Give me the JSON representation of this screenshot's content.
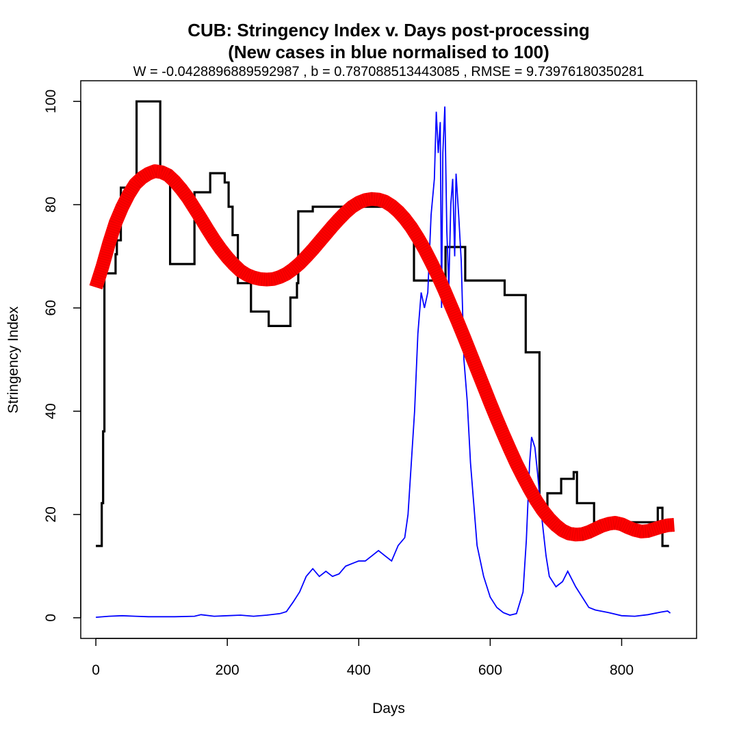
{
  "chart_data": {
    "type": "line",
    "title": "CUB: Stringency Index v. Days post-processing",
    "title_line2": "(New cases in blue normalised to 100)",
    "subtitle": "W = -0.0428896889592987 , b = 0.787088513443085 , RMSE = 9.73976180350281",
    "xlabel": "Days",
    "ylabel": "Stringency Index",
    "xlim": [
      -23,
      914
    ],
    "ylim": [
      -4,
      104
    ],
    "x_ticks": [
      0,
      200,
      400,
      600,
      800
    ],
    "y_ticks": [
      0,
      20,
      40,
      60,
      80,
      100
    ],
    "grid": false,
    "series": [
      {
        "color": "#000000",
        "style": "step",
        "points": [
          [
            0,
            13.9
          ],
          [
            9,
            13.9
          ],
          [
            9,
            22.2
          ],
          [
            11,
            22.2
          ],
          [
            11,
            36.1
          ],
          [
            13,
            36.1
          ],
          [
            13,
            66.7
          ],
          [
            30,
            66.7
          ],
          [
            30,
            70.4
          ],
          [
            32,
            70.4
          ],
          [
            32,
            73.1
          ],
          [
            38,
            73.1
          ],
          [
            38,
            83.3
          ],
          [
            58,
            83.3
          ],
          [
            58,
            85.2
          ],
          [
            62,
            85.2
          ],
          [
            62,
            100
          ],
          [
            98,
            100
          ],
          [
            98,
            86.1
          ],
          [
            113,
            86.1
          ],
          [
            113,
            68.5
          ],
          [
            150,
            68.5
          ],
          [
            150,
            82.4
          ],
          [
            174,
            82.4
          ],
          [
            174,
            86.1
          ],
          [
            196,
            86.1
          ],
          [
            196,
            84.3
          ],
          [
            202,
            84.3
          ],
          [
            202,
            79.6
          ],
          [
            208,
            79.6
          ],
          [
            208,
            74.1
          ],
          [
            216,
            74.1
          ],
          [
            216,
            64.8
          ],
          [
            236,
            64.8
          ],
          [
            236,
            59.3
          ],
          [
            263,
            59.3
          ],
          [
            263,
            56.5
          ],
          [
            296,
            56.5
          ],
          [
            296,
            62
          ],
          [
            306,
            62
          ],
          [
            306,
            64.8
          ],
          [
            308,
            64.8
          ],
          [
            308,
            78.7
          ],
          [
            330,
            78.7
          ],
          [
            330,
            79.6
          ],
          [
            460,
            79.6
          ],
          [
            460,
            78.2
          ],
          [
            470,
            78.2
          ],
          [
            470,
            76.4
          ],
          [
            484,
            76.4
          ],
          [
            484,
            65.3
          ],
          [
            532,
            65.3
          ],
          [
            532,
            71.8
          ],
          [
            562,
            71.8
          ],
          [
            562,
            65.3
          ],
          [
            622,
            65.3
          ],
          [
            622,
            62.5
          ],
          [
            654,
            62.5
          ],
          [
            654,
            51.4
          ],
          [
            675,
            51.4
          ],
          [
            675,
            21.3
          ],
          [
            687,
            21.3
          ],
          [
            687,
            24.1
          ],
          [
            708,
            24.1
          ],
          [
            708,
            26.9
          ],
          [
            727,
            26.9
          ],
          [
            727,
            28.2
          ],
          [
            732,
            28.2
          ],
          [
            732,
            22.2
          ],
          [
            758,
            22.2
          ],
          [
            758,
            18.5
          ],
          [
            855,
            18.5
          ],
          [
            855,
            21.3
          ],
          [
            862,
            21.3
          ],
          [
            862,
            13.9
          ],
          [
            872,
            13.9
          ]
        ]
      },
      {
        "color": "#0000ff",
        "style": "line",
        "points": [
          [
            0,
            0.1
          ],
          [
            20,
            0.3
          ],
          [
            40,
            0.4
          ],
          [
            60,
            0.3
          ],
          [
            80,
            0.2
          ],
          [
            100,
            0.2
          ],
          [
            120,
            0.2
          ],
          [
            150,
            0.3
          ],
          [
            160,
            0.6
          ],
          [
            180,
            0.3
          ],
          [
            200,
            0.4
          ],
          [
            220,
            0.5
          ],
          [
            240,
            0.3
          ],
          [
            260,
            0.5
          ],
          [
            280,
            0.8
          ],
          [
            290,
            1.2
          ],
          [
            300,
            3
          ],
          [
            310,
            5
          ],
          [
            320,
            8
          ],
          [
            330,
            9.5
          ],
          [
            340,
            8
          ],
          [
            350,
            9
          ],
          [
            360,
            8
          ],
          [
            370,
            8.5
          ],
          [
            380,
            10
          ],
          [
            390,
            10.5
          ],
          [
            400,
            11
          ],
          [
            410,
            11
          ],
          [
            420,
            12
          ],
          [
            430,
            13
          ],
          [
            440,
            12
          ],
          [
            450,
            11
          ],
          [
            460,
            14
          ],
          [
            470,
            15.5
          ],
          [
            475,
            20
          ],
          [
            480,
            30
          ],
          [
            485,
            40
          ],
          [
            490,
            55
          ],
          [
            495,
            63
          ],
          [
            500,
            60
          ],
          [
            505,
            63
          ],
          [
            510,
            78
          ],
          [
            515,
            85
          ],
          [
            518,
            98
          ],
          [
            521,
            90
          ],
          [
            524,
            96
          ],
          [
            526,
            60
          ],
          [
            528,
            90
          ],
          [
            531,
            99
          ],
          [
            534,
            75
          ],
          [
            537,
            64
          ],
          [
            540,
            80
          ],
          [
            543,
            85
          ],
          [
            546,
            70
          ],
          [
            548,
            86
          ],
          [
            552,
            78
          ],
          [
            556,
            69
          ],
          [
            560,
            50
          ],
          [
            565,
            42
          ],
          [
            570,
            30
          ],
          [
            575,
            22
          ],
          [
            580,
            14
          ],
          [
            590,
            8
          ],
          [
            600,
            4
          ],
          [
            610,
            2
          ],
          [
            620,
            1
          ],
          [
            630,
            0.5
          ],
          [
            640,
            0.8
          ],
          [
            650,
            5
          ],
          [
            655,
            15
          ],
          [
            660,
            30
          ],
          [
            663,
            35
          ],
          [
            668,
            33
          ],
          [
            672,
            28
          ],
          [
            678,
            20
          ],
          [
            685,
            12
          ],
          [
            690,
            8
          ],
          [
            700,
            6
          ],
          [
            710,
            7
          ],
          [
            718,
            9
          ],
          [
            722,
            8
          ],
          [
            730,
            6
          ],
          [
            740,
            4
          ],
          [
            750,
            2
          ],
          [
            760,
            1.5
          ],
          [
            780,
            1
          ],
          [
            800,
            0.4
          ],
          [
            820,
            0.3
          ],
          [
            840,
            0.6
          ],
          [
            860,
            1.1
          ],
          [
            870,
            1.3
          ],
          [
            874,
            0.9
          ]
        ]
      },
      {
        "color": "#ff0000",
        "style": "thick-fit",
        "points": [
          [
            0,
            64
          ],
          [
            10,
            68
          ],
          [
            20,
            72.5
          ],
          [
            30,
            76.5
          ],
          [
            40,
            79.5
          ],
          [
            50,
            82
          ],
          [
            60,
            84
          ],
          [
            70,
            85.2
          ],
          [
            80,
            86
          ],
          [
            90,
            86.5
          ],
          [
            100,
            86.3
          ],
          [
            110,
            85.7
          ],
          [
            120,
            84.5
          ],
          [
            130,
            83
          ],
          [
            140,
            81.3
          ],
          [
            150,
            79.3
          ],
          [
            160,
            77.3
          ],
          [
            170,
            75.2
          ],
          [
            180,
            73.2
          ],
          [
            190,
            71.4
          ],
          [
            200,
            69.8
          ],
          [
            210,
            68.4
          ],
          [
            220,
            67.2
          ],
          [
            230,
            66.4
          ],
          [
            240,
            65.9
          ],
          [
            250,
            65.6
          ],
          [
            260,
            65.5
          ],
          [
            270,
            65.6
          ],
          [
            280,
            66
          ],
          [
            290,
            66.6
          ],
          [
            300,
            67.5
          ],
          [
            310,
            68.6
          ],
          [
            320,
            69.9
          ],
          [
            330,
            71.3
          ],
          [
            340,
            72.8
          ],
          [
            350,
            74.3
          ],
          [
            360,
            75.8
          ],
          [
            370,
            77.2
          ],
          [
            380,
            78.5
          ],
          [
            390,
            79.6
          ],
          [
            400,
            80.4
          ],
          [
            410,
            80.9
          ],
          [
            420,
            81.1
          ],
          [
            430,
            81
          ],
          [
            440,
            80.6
          ],
          [
            450,
            79.8
          ],
          [
            460,
            78.7
          ],
          [
            470,
            77.3
          ],
          [
            480,
            75.6
          ],
          [
            490,
            73.6
          ],
          [
            500,
            71.4
          ],
          [
            510,
            68.9
          ],
          [
            520,
            66.3
          ],
          [
            530,
            63.5
          ],
          [
            540,
            60.5
          ],
          [
            550,
            57.5
          ],
          [
            560,
            54.4
          ],
          [
            570,
            51.2
          ],
          [
            580,
            48
          ],
          [
            590,
            44.8
          ],
          [
            600,
            41.6
          ],
          [
            610,
            38.5
          ],
          [
            620,
            35.5
          ],
          [
            630,
            32.6
          ],
          [
            640,
            29.8
          ],
          [
            650,
            27.3
          ],
          [
            660,
            24.9
          ],
          [
            670,
            22.7
          ],
          [
            680,
            20.8
          ],
          [
            690,
            19.2
          ],
          [
            700,
            17.9
          ],
          [
            710,
            16.9
          ],
          [
            720,
            16.3
          ],
          [
            730,
            16.1
          ],
          [
            740,
            16.2
          ],
          [
            750,
            16.6
          ],
          [
            760,
            17.2
          ],
          [
            770,
            17.8
          ],
          [
            780,
            18.2
          ],
          [
            790,
            18.4
          ],
          [
            800,
            18.1
          ],
          [
            810,
            17.5
          ],
          [
            820,
            17
          ],
          [
            830,
            16.7
          ],
          [
            840,
            16.8
          ],
          [
            850,
            17.2
          ],
          [
            860,
            17.6
          ],
          [
            870,
            17.9
          ],
          [
            880,
            18
          ]
        ]
      }
    ]
  }
}
